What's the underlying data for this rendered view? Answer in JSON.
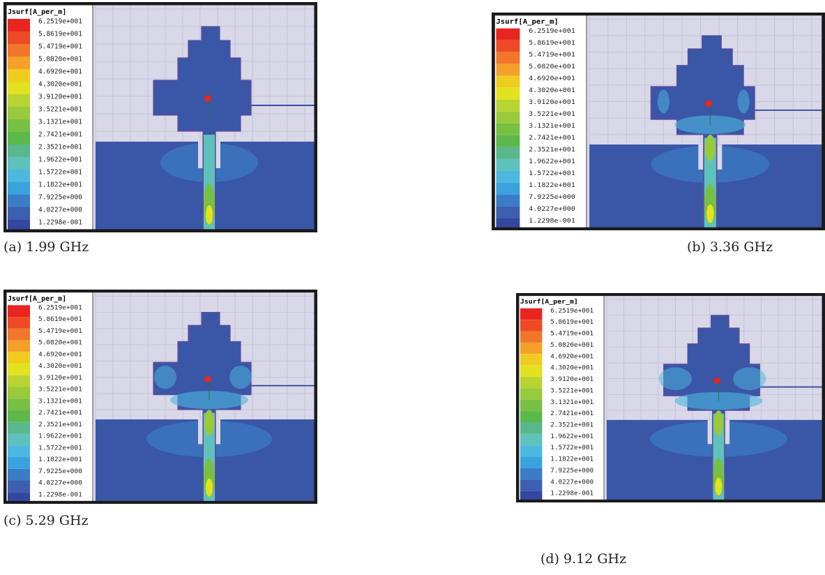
{
  "legend": {
    "title": "Jsurf[A_per_m]",
    "labels": [
      "6.2519e+001",
      "5.8619e+001",
      "5.4719e+001",
      "5.0820e+001",
      "4.6920e+001",
      "4.3020e+001",
      "3.9120e+001",
      "3.5221e+001",
      "3.1321e+001",
      "2.7421e+001",
      "2.3521e+001",
      "1.9622e+001",
      "1.5722e+001",
      "1.1822e+001",
      "7.9225e+000",
      "4.0227e+000",
      "1.2298e-001"
    ],
    "colors": [
      "#e8251f",
      "#ee4a26",
      "#f2762a",
      "#f4a02a",
      "#f0cc20",
      "#e2e21e",
      "#b8d432",
      "#98ca3c",
      "#78c043",
      "#5cb84a",
      "#58b88c",
      "#5ec2bc",
      "#4cb8e0",
      "#3aa2de",
      "#3a7cc6",
      "#3c5fb0",
      "#3447a0"
    ]
  },
  "panels": [
    {
      "caption": "(a) 1.99 GHz"
    },
    {
      "caption": "(b) 3.36 GHz"
    },
    {
      "caption": "(c) 5.29 GHz"
    },
    {
      "caption": "(d) 9.12 GHz"
    }
  ]
}
